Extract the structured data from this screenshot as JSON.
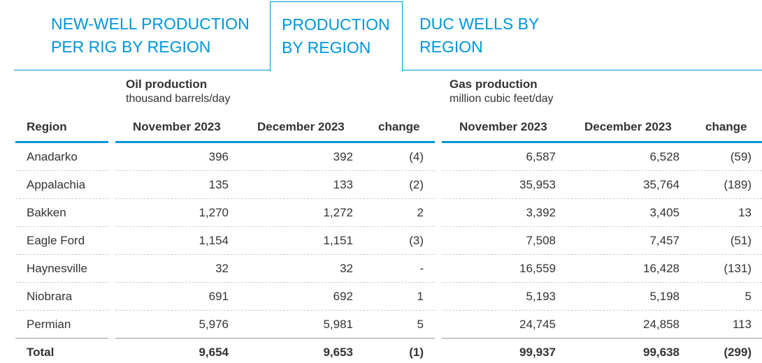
{
  "tabs": [
    {
      "line1": "NEW-WELL PRODUCTION",
      "line2": "PER RIG BY REGION"
    },
    {
      "line1": "PRODUCTION",
      "line2": "BY REGION"
    },
    {
      "line1": "DUC WELLS BY",
      "line2": "REGION"
    }
  ],
  "active_tab": 1,
  "groups": {
    "oil": {
      "title": "Oil production",
      "unit": "thousand barrels/day"
    },
    "gas": {
      "title": "Gas production",
      "unit": "million cubic feet/day"
    }
  },
  "columns": {
    "region": "Region",
    "oil_nov": "November 2023",
    "oil_dec": "December 2023",
    "oil_change": "change",
    "gas_nov": "November 2023",
    "gas_dec": "December 2023",
    "gas_change": "change"
  },
  "rows": [
    {
      "region": "Anadarko",
      "oil_nov": "396",
      "oil_dec": "392",
      "oil_change": "(4)",
      "gas_nov": "6,587",
      "gas_dec": "6,528",
      "gas_change": "(59)"
    },
    {
      "region": "Appalachia",
      "oil_nov": "135",
      "oil_dec": "133",
      "oil_change": "(2)",
      "gas_nov": "35,953",
      "gas_dec": "35,764",
      "gas_change": "(189)"
    },
    {
      "region": "Bakken",
      "oil_nov": "1,270",
      "oil_dec": "1,272",
      "oil_change": "2",
      "gas_nov": "3,392",
      "gas_dec": "3,405",
      "gas_change": "13"
    },
    {
      "region": "Eagle Ford",
      "oil_nov": "1,154",
      "oil_dec": "1,151",
      "oil_change": "(3)",
      "gas_nov": "7,508",
      "gas_dec": "7,457",
      "gas_change": "(51)"
    },
    {
      "region": "Haynesville",
      "oil_nov": "32",
      "oil_dec": "32",
      "oil_change": "-",
      "gas_nov": "16,559",
      "gas_dec": "16,428",
      "gas_change": "(131)"
    },
    {
      "region": "Niobrara",
      "oil_nov": "691",
      "oil_dec": "692",
      "oil_change": "1",
      "gas_nov": "5,193",
      "gas_dec": "5,198",
      "gas_change": "5"
    },
    {
      "region": "Permian",
      "oil_nov": "5,976",
      "oil_dec": "5,981",
      "oil_change": "5",
      "gas_nov": "24,745",
      "gas_dec": "24,858",
      "gas_change": "113"
    }
  ],
  "total": {
    "region": "Total",
    "oil_nov": "9,654",
    "oil_dec": "9,653",
    "oil_change": "(1)",
    "gas_nov": "99,937",
    "gas_dec": "99,638",
    "gas_change": "(299)"
  },
  "colors": {
    "accent": "#0096d6",
    "text": "#333333",
    "separator": "#cfcfcf"
  }
}
